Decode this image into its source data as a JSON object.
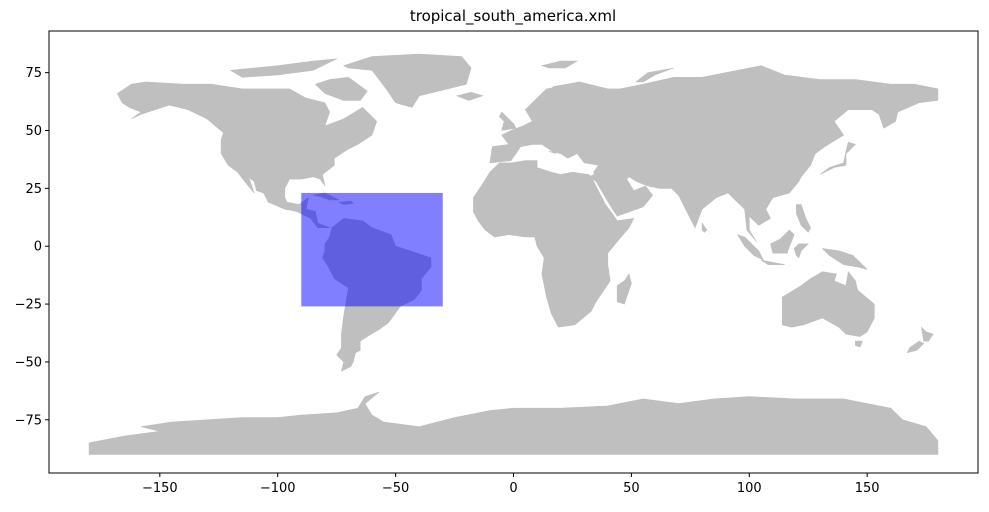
{
  "chart_data": {
    "type": "map",
    "title": "tropical_south_america.xml",
    "xlabel": "",
    "ylabel": "",
    "xlim": [
      -197,
      197
    ],
    "ylim": [
      -98,
      93
    ],
    "xticks": [
      -150,
      -100,
      -50,
      0,
      50,
      100,
      150
    ],
    "yticks": [
      -75,
      -50,
      -25,
      0,
      25,
      50,
      75
    ],
    "grid": false,
    "land_color": "#bfbfbf",
    "region": {
      "lon_min": -90,
      "lon_max": -30,
      "lat_min": -26,
      "lat_max": 23,
      "color": "#0000ff",
      "alpha": 0.5
    }
  },
  "land": {
    "north_america": [
      [
        -168,
        66
      ],
      [
        -162,
        70
      ],
      [
        -156,
        71
      ],
      [
        -140,
        70
      ],
      [
        -128,
        70
      ],
      [
        -115,
        68
      ],
      [
        -95,
        68
      ],
      [
        -88,
        64
      ],
      [
        -80,
        62
      ],
      [
        -78,
        58
      ],
      [
        -80,
        52
      ],
      [
        -72,
        55
      ],
      [
        -64,
        60
      ],
      [
        -58,
        54
      ],
      [
        -60,
        48
      ],
      [
        -66,
        44
      ],
      [
        -70,
        42
      ],
      [
        -76,
        38
      ],
      [
        -76,
        35
      ],
      [
        -81,
        31
      ],
      [
        -80,
        26
      ],
      [
        -82,
        29
      ],
      [
        -85,
        30
      ],
      [
        -90,
        29
      ],
      [
        -95,
        29
      ],
      [
        -97,
        25
      ],
      [
        -97,
        21
      ],
      [
        -96,
        19
      ],
      [
        -91,
        18
      ],
      [
        -87,
        21
      ],
      [
        -88,
        16
      ],
      [
        -84,
        15
      ],
      [
        -83,
        10
      ],
      [
        -78,
        8
      ],
      [
        -80,
        8
      ],
      [
        -83,
        8
      ],
      [
        -86,
        12
      ],
      [
        -92,
        15
      ],
      [
        -97,
        16
      ],
      [
        -104,
        19
      ],
      [
        -106,
        23
      ],
      [
        -109,
        24
      ],
      [
        -110,
        28
      ],
      [
        -114,
        31
      ],
      [
        -112,
        29
      ],
      [
        -110,
        23
      ],
      [
        -114,
        28
      ],
      [
        -117,
        32
      ],
      [
        -121,
        35
      ],
      [
        -124,
        40
      ],
      [
        -124,
        46
      ],
      [
        -123,
        49
      ],
      [
        -130,
        55
      ],
      [
        -138,
        59
      ],
      [
        -146,
        61
      ],
      [
        -152,
        59
      ],
      [
        -158,
        57
      ],
      [
        -162,
        55
      ],
      [
        -158,
        58
      ],
      [
        -163,
        60
      ],
      [
        -166,
        62
      ]
    ],
    "greenland": [
      [
        -72,
        78
      ],
      [
        -60,
        82
      ],
      [
        -40,
        83
      ],
      [
        -22,
        82
      ],
      [
        -18,
        77
      ],
      [
        -20,
        70
      ],
      [
        -28,
        68
      ],
      [
        -40,
        65
      ],
      [
        -43,
        60
      ],
      [
        -50,
        62
      ],
      [
        -54,
        68
      ],
      [
        -60,
        76
      ],
      [
        -70,
        77
      ]
    ],
    "baffin": [
      [
        -78,
        72
      ],
      [
        -70,
        73
      ],
      [
        -62,
        67
      ],
      [
        -65,
        63
      ],
      [
        -72,
        63
      ],
      [
        -80,
        66
      ],
      [
        -84,
        70
      ]
    ],
    "arctic_islands": [
      [
        -120,
        76
      ],
      [
        -100,
        78
      ],
      [
        -85,
        80
      ],
      [
        -75,
        81
      ],
      [
        -85,
        76
      ],
      [
        -100,
        74
      ],
      [
        -115,
        73
      ]
    ],
    "south_america": [
      [
        -77,
        8
      ],
      [
        -72,
        12
      ],
      [
        -64,
        11
      ],
      [
        -60,
        8
      ],
      [
        -52,
        5
      ],
      [
        -50,
        0
      ],
      [
        -44,
        -2
      ],
      [
        -35,
        -5
      ],
      [
        -35,
        -9
      ],
      [
        -39,
        -14
      ],
      [
        -39,
        -19
      ],
      [
        -42,
        -23
      ],
      [
        -48,
        -26
      ],
      [
        -53,
        -33
      ],
      [
        -57,
        -36
      ],
      [
        -62,
        -39
      ],
      [
        -65,
        -41
      ],
      [
        -65,
        -45
      ],
      [
        -67,
        -46
      ],
      [
        -68,
        -50
      ],
      [
        -69,
        -52
      ],
      [
        -73,
        -54
      ],
      [
        -72,
        -50
      ],
      [
        -75,
        -47
      ],
      [
        -73,
        -44
      ],
      [
        -73,
        -38
      ],
      [
        -72,
        -30
      ],
      [
        -71,
        -24
      ],
      [
        -70,
        -18
      ],
      [
        -76,
        -14
      ],
      [
        -79,
        -8
      ],
      [
        -81,
        -5
      ],
      [
        -80,
        -2
      ],
      [
        -80,
        1
      ],
      [
        -78,
        4
      ]
    ],
    "cuba": [
      [
        -85,
        22
      ],
      [
        -80,
        23
      ],
      [
        -74,
        20
      ],
      [
        -78,
        20
      ],
      [
        -82,
        21.5
      ]
    ],
    "hispaniola": [
      [
        -74,
        19
      ],
      [
        -69,
        19.5
      ],
      [
        -68,
        18.5
      ],
      [
        -72,
        18
      ]
    ],
    "europe_asia": [
      [
        -10,
        36
      ],
      [
        -9,
        43
      ],
      [
        -2,
        44
      ],
      [
        -5,
        48
      ],
      [
        -1,
        50
      ],
      [
        4,
        52
      ],
      [
        8,
        54
      ],
      [
        5,
        59
      ],
      [
        10,
        63
      ],
      [
        17,
        69
      ],
      [
        28,
        71
      ],
      [
        40,
        68
      ],
      [
        45,
        68
      ],
      [
        55,
        70
      ],
      [
        68,
        73
      ],
      [
        80,
        73
      ],
      [
        95,
        76
      ],
      [
        105,
        78
      ],
      [
        115,
        74
      ],
      [
        130,
        72
      ],
      [
        145,
        72
      ],
      [
        160,
        70
      ],
      [
        170,
        70
      ],
      [
        180,
        68
      ],
      [
        180,
        63
      ],
      [
        172,
        62
      ],
      [
        163,
        58
      ],
      [
        162,
        54
      ],
      [
        157,
        51
      ],
      [
        155,
        57
      ],
      [
        152,
        59
      ],
      [
        142,
        59
      ],
      [
        136,
        54
      ],
      [
        140,
        48
      ],
      [
        132,
        43
      ],
      [
        128,
        40
      ],
      [
        126,
        35
      ],
      [
        122,
        30
      ],
      [
        121,
        28
      ],
      [
        117,
        23
      ],
      [
        110,
        21
      ],
      [
        107,
        16
      ],
      [
        109,
        12
      ],
      [
        104,
        9
      ],
      [
        100,
        13
      ],
      [
        100,
        7
      ],
      [
        103,
        2
      ],
      [
        99,
        7
      ],
      [
        98,
        16
      ],
      [
        93,
        21
      ],
      [
        91,
        23
      ],
      [
        86,
        21
      ],
      [
        80,
        16
      ],
      [
        77,
        8
      ],
      [
        73,
        16
      ],
      [
        70,
        22
      ],
      [
        67,
        25
      ],
      [
        62,
        25
      ],
      [
        57,
        26
      ],
      [
        52,
        28
      ],
      [
        49,
        30
      ],
      [
        48,
        29
      ],
      [
        51,
        24
      ],
      [
        56,
        26
      ],
      [
        59,
        22
      ],
      [
        55,
        17
      ],
      [
        44,
        13
      ],
      [
        42,
        16
      ],
      [
        39,
        21
      ],
      [
        35,
        28
      ],
      [
        34,
        32
      ],
      [
        36,
        35
      ],
      [
        30,
        36
      ],
      [
        27,
        40
      ],
      [
        23,
        38
      ],
      [
        20,
        40
      ],
      [
        15,
        41
      ],
      [
        18,
        40
      ],
      [
        12,
        44
      ],
      [
        8,
        44
      ],
      [
        3,
        43
      ],
      [
        -1,
        37
      ]
    ],
    "arabia_join": [
      [
        34,
        31
      ],
      [
        32,
        30
      ],
      [
        35,
        28
      ]
    ],
    "africa": [
      [
        -17,
        21
      ],
      [
        -17,
        15
      ],
      [
        -15,
        11
      ],
      [
        -12,
        7
      ],
      [
        -8,
        4
      ],
      [
        -2,
        5
      ],
      [
        5,
        4
      ],
      [
        9,
        4
      ],
      [
        10,
        0
      ],
      [
        13,
        -5
      ],
      [
        12,
        -12
      ],
      [
        14,
        -22
      ],
      [
        16,
        -29
      ],
      [
        19,
        -35
      ],
      [
        26,
        -34
      ],
      [
        33,
        -28
      ],
      [
        35,
        -24
      ],
      [
        41,
        -15
      ],
      [
        40,
        -8
      ],
      [
        40,
        -3
      ],
      [
        44,
        2
      ],
      [
        49,
        8
      ],
      [
        51,
        12
      ],
      [
        44,
        11
      ],
      [
        42,
        14
      ],
      [
        39,
        18
      ],
      [
        37,
        22
      ],
      [
        34,
        28
      ],
      [
        32,
        31
      ],
      [
        25,
        32
      ],
      [
        20,
        31
      ],
      [
        16,
        32
      ],
      [
        10,
        34
      ],
      [
        10,
        37
      ],
      [
        5,
        37
      ],
      [
        -1,
        36
      ],
      [
        -6,
        36
      ],
      [
        -10,
        32
      ],
      [
        -13,
        27
      ]
    ],
    "madagascar": [
      [
        49,
        -12
      ],
      [
        50,
        -16
      ],
      [
        47,
        -25
      ],
      [
        44,
        -24
      ],
      [
        44,
        -17
      ],
      [
        47,
        -15
      ]
    ],
    "uk": [
      [
        -5,
        50
      ],
      [
        1,
        51
      ],
      [
        0,
        53
      ],
      [
        -3,
        56
      ],
      [
        -5,
        58
      ],
      [
        -6,
        56
      ],
      [
        -4,
        54
      ]
    ],
    "scandinavia_north": [
      [
        5,
        59
      ],
      [
        10,
        58
      ],
      [
        12,
        56
      ],
      [
        18,
        60
      ],
      [
        22,
        65
      ],
      [
        26,
        67
      ],
      [
        20,
        69
      ],
      [
        14,
        68
      ]
    ],
    "japan": [
      [
        130,
        31
      ],
      [
        134,
        34
      ],
      [
        140,
        36
      ],
      [
        141,
        41
      ],
      [
        142,
        45
      ],
      [
        145,
        44
      ],
      [
        141,
        40
      ],
      [
        141,
        35
      ],
      [
        136,
        34
      ]
    ],
    "sumatra": [
      [
        95,
        5
      ],
      [
        98,
        4
      ],
      [
        104,
        -2
      ],
      [
        106,
        -6
      ],
      [
        102,
        -4
      ],
      [
        98,
        0
      ]
    ],
    "borneo": [
      [
        109,
        1
      ],
      [
        113,
        3
      ],
      [
        117,
        7
      ],
      [
        119,
        5
      ],
      [
        116,
        -3
      ],
      [
        110,
        -3
      ]
    ],
    "java": [
      [
        105,
        -6
      ],
      [
        110,
        -7
      ],
      [
        115,
        -8
      ],
      [
        108,
        -8
      ]
    ],
    "sulawesi": [
      [
        119,
        -1
      ],
      [
        121,
        1
      ],
      [
        125,
        1
      ],
      [
        122,
        -2
      ],
      [
        121,
        -5
      ],
      [
        120,
        -4
      ]
    ],
    "philippines": [
      [
        120,
        18
      ],
      [
        122,
        18
      ],
      [
        124,
        12
      ],
      [
        126,
        8
      ],
      [
        125,
        6
      ],
      [
        122,
        9
      ],
      [
        120,
        14
      ]
    ],
    "new_guinea": [
      [
        131,
        -1
      ],
      [
        138,
        -2
      ],
      [
        144,
        -4
      ],
      [
        150,
        -10
      ],
      [
        146,
        -9
      ],
      [
        140,
        -8
      ],
      [
        134,
        -4
      ]
    ],
    "australia": [
      [
        114,
        -22
      ],
      [
        114,
        -34
      ],
      [
        118,
        -35
      ],
      [
        123,
        -34
      ],
      [
        131,
        -31
      ],
      [
        138,
        -35
      ],
      [
        141,
        -38
      ],
      [
        147,
        -39
      ],
      [
        150,
        -37
      ],
      [
        153,
        -31
      ],
      [
        153,
        -25
      ],
      [
        146,
        -19
      ],
      [
        145,
        -15
      ],
      [
        142,
        -11
      ],
      [
        141,
        -17
      ],
      [
        136,
        -15
      ],
      [
        137,
        -12
      ],
      [
        131,
        -11
      ],
      [
        126,
        -14
      ],
      [
        122,
        -17
      ]
    ],
    "tasmania": [
      [
        145,
        -41
      ],
      [
        148,
        -41
      ],
      [
        147,
        -43.5
      ],
      [
        145,
        -43
      ]
    ],
    "nz_north": [
      [
        173,
        -35
      ],
      [
        175,
        -37
      ],
      [
        178,
        -38
      ],
      [
        176,
        -41
      ],
      [
        174,
        -41
      ]
    ],
    "nz_south": [
      [
        172,
        -41
      ],
      [
        174,
        -42
      ],
      [
        171,
        -45
      ],
      [
        167,
        -46
      ],
      [
        168,
        -44
      ]
    ],
    "sri_lanka": [
      [
        80,
        10
      ],
      [
        82,
        7
      ],
      [
        81,
        6
      ],
      [
        80,
        7
      ]
    ],
    "iceland": [
      [
        -24,
        65
      ],
      [
        -18,
        66.5
      ],
      [
        -13,
        65
      ],
      [
        -19,
        63
      ]
    ],
    "svalbard": [
      [
        12,
        78
      ],
      [
        20,
        80
      ],
      [
        27,
        80
      ],
      [
        22,
        77
      ],
      [
        15,
        77
      ]
    ],
    "novaya_zemlya": [
      [
        52,
        71
      ],
      [
        57,
        75
      ],
      [
        68,
        77
      ],
      [
        60,
        74
      ],
      [
        55,
        71
      ]
    ],
    "antarctica": [
      [
        -180,
        -85
      ],
      [
        -180,
        -90
      ],
      [
        180,
        -90
      ],
      [
        180,
        -84
      ],
      [
        175,
        -78
      ],
      [
        165,
        -75
      ],
      [
        160,
        -70
      ],
      [
        150,
        -68
      ],
      [
        140,
        -66
      ],
      [
        120,
        -66
      ],
      [
        100,
        -65
      ],
      [
        85,
        -66
      ],
      [
        70,
        -68
      ],
      [
        55,
        -66
      ],
      [
        40,
        -69
      ],
      [
        20,
        -70
      ],
      [
        0,
        -70
      ],
      [
        -10,
        -71
      ],
      [
        -25,
        -74
      ],
      [
        -40,
        -78
      ],
      [
        -55,
        -76
      ],
      [
        -60,
        -73
      ],
      [
        -63,
        -68
      ],
      [
        -57,
        -63
      ],
      [
        -63,
        -65
      ],
      [
        -66,
        -70
      ],
      [
        -75,
        -72
      ],
      [
        -90,
        -73
      ],
      [
        -100,
        -74
      ],
      [
        -115,
        -74
      ],
      [
        -130,
        -75
      ],
      [
        -145,
        -76
      ],
      [
        -158,
        -78
      ],
      [
        -150,
        -80
      ],
      [
        -165,
        -82
      ],
      [
        -175,
        -84
      ]
    ]
  }
}
